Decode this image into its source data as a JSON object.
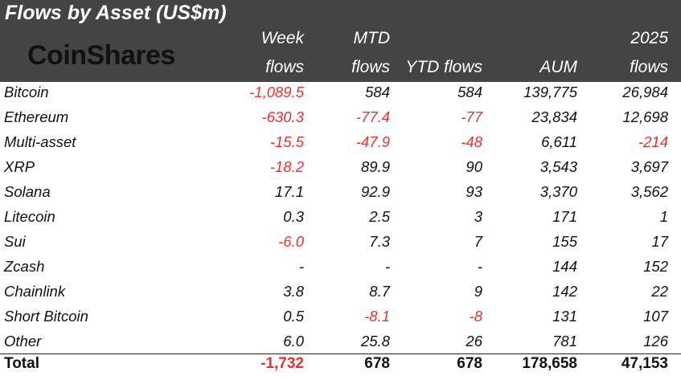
{
  "title": "Flows by Asset (US$m)",
  "logo": "CoinShares",
  "headers": {
    "week_top": "Week",
    "week_bottom": "flows",
    "mtd_top": "MTD",
    "mtd_bottom": "flows",
    "ytd": "YTD flows",
    "aum": "AUM",
    "y2025_top": "2025",
    "y2025_bottom": "flows"
  },
  "rows": [
    {
      "name": "Bitcoin",
      "week": "-1,089.5",
      "mtd": "584",
      "ytd": "584",
      "aum": "139,775",
      "y2025": "26,984"
    },
    {
      "name": "Ethereum",
      "week": "-630.3",
      "mtd": "-77.4",
      "ytd": "-77",
      "aum": "23,834",
      "y2025": "12,698"
    },
    {
      "name": "Multi-asset",
      "week": "-15.5",
      "mtd": "-47.9",
      "ytd": "-48",
      "aum": "6,611",
      "y2025": "-214"
    },
    {
      "name": "XRP",
      "week": "-18.2",
      "mtd": "89.9",
      "ytd": "90",
      "aum": "3,543",
      "y2025": "3,697"
    },
    {
      "name": "Solana",
      "week": "17.1",
      "mtd": "92.9",
      "ytd": "93",
      "aum": "3,370",
      "y2025": "3,562"
    },
    {
      "name": "Litecoin",
      "week": "0.3",
      "mtd": "2.5",
      "ytd": "3",
      "aum": "171",
      "y2025": "1"
    },
    {
      "name": "Sui",
      "week": "-6.0",
      "mtd": "7.3",
      "ytd": "7",
      "aum": "155",
      "y2025": "17"
    },
    {
      "name": "Zcash",
      "week": "-",
      "mtd": "-",
      "ytd": "-",
      "aum": "144",
      "y2025": "152"
    },
    {
      "name": "Chainlink",
      "week": "3.8",
      "mtd": "8.7",
      "ytd": "9",
      "aum": "142",
      "y2025": "22"
    },
    {
      "name": "Short Bitcoin",
      "week": "0.5",
      "mtd": "-8.1",
      "ytd": "-8",
      "aum": "131",
      "y2025": "107"
    },
    {
      "name": "Other",
      "week": "6.0",
      "mtd": "25.8",
      "ytd": "26",
      "aum": "781",
      "y2025": "126"
    }
  ],
  "total": {
    "name": "Total",
    "week": "-1,732",
    "mtd": "678",
    "ytd": "678",
    "aum": "178,658",
    "y2025": "47,153"
  },
  "colors": {
    "header_bg": "#444444",
    "negative": "#e8312f",
    "text": "#111111"
  }
}
